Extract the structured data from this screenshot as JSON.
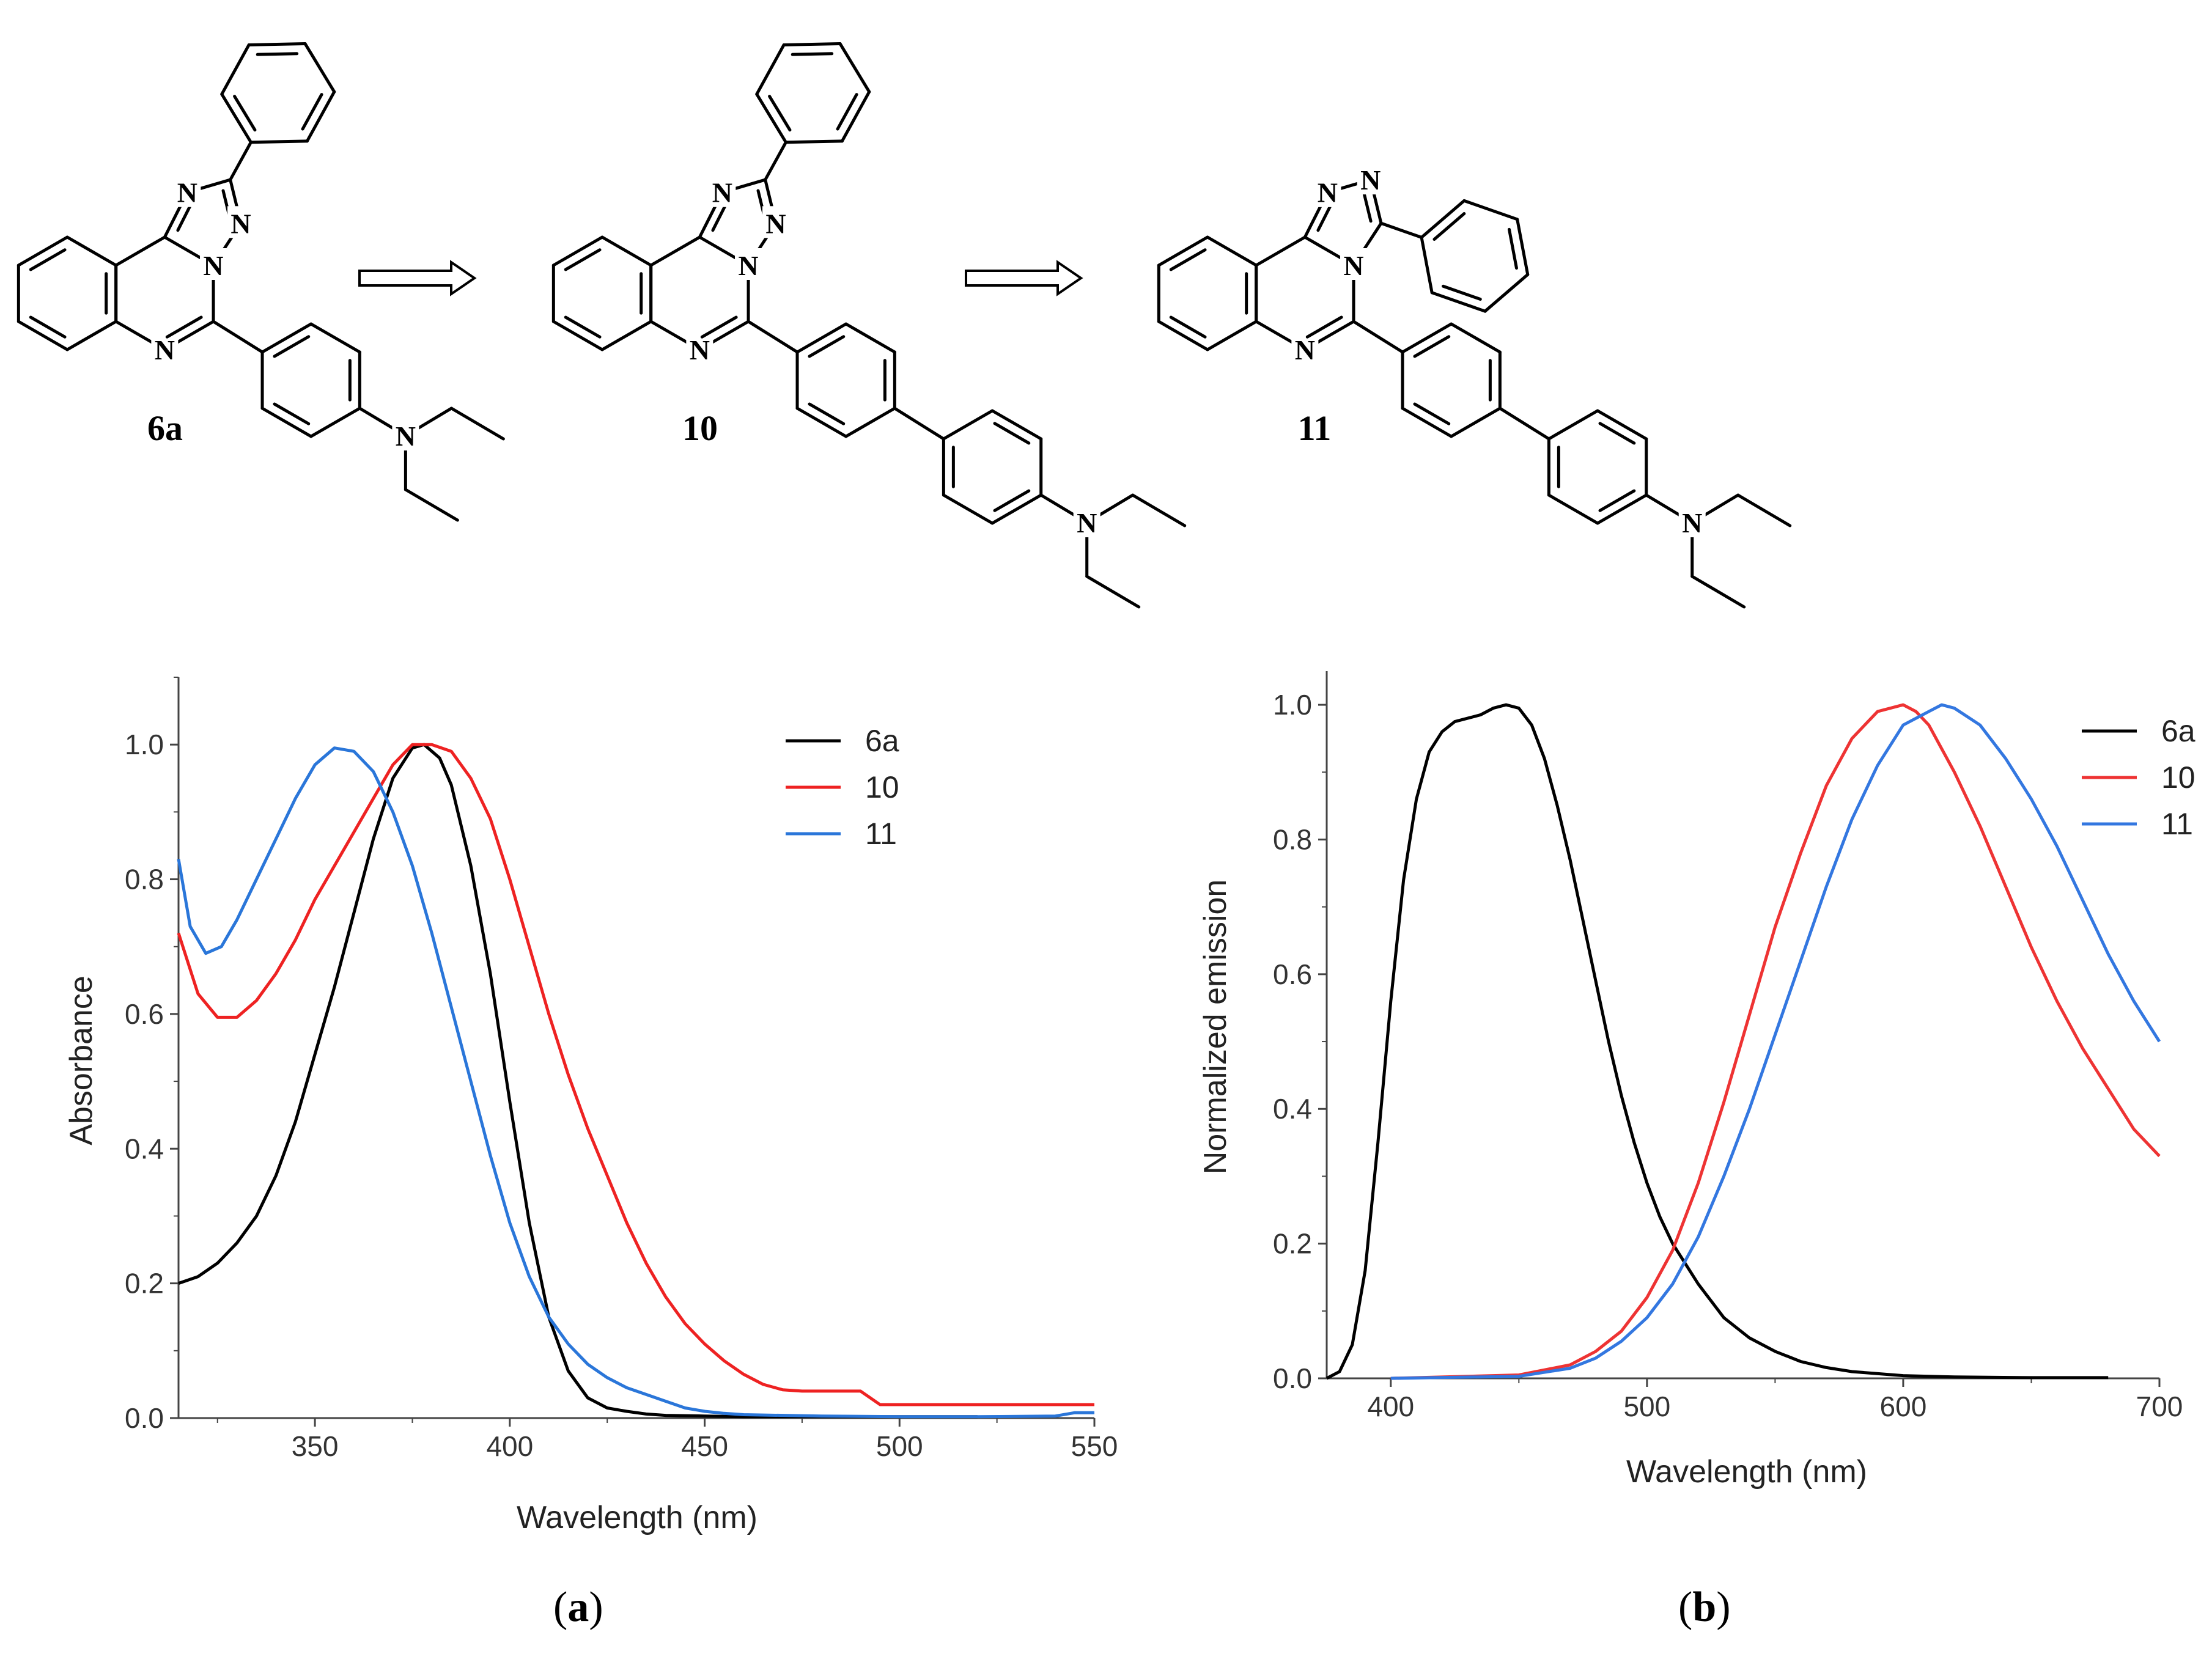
{
  "scheme": {
    "compounds": [
      {
        "label": "6a"
      },
      {
        "label": "10"
      },
      {
        "label": "11"
      }
    ],
    "atom_label": "N"
  },
  "panels": {
    "a": {
      "open": "(",
      "letter": "a",
      "close": ")"
    },
    "b": {
      "open": "(",
      "letter": "b",
      "close": ")"
    }
  },
  "chart_data": [
    {
      "type": "line",
      "xlabel": "Wavelength (nm)",
      "ylabel": "Absorbance",
      "xlim": [
        315,
        550
      ],
      "ylim": [
        0,
        1.1
      ],
      "xticks": [
        350,
        400,
        450,
        500,
        550
      ],
      "yticks": [
        0.0,
        0.2,
        0.4,
        0.6,
        0.8,
        1.0
      ],
      "grid": false,
      "legend": "top-right",
      "series": [
        {
          "name": "6a",
          "color": "#000000",
          "x": [
            315,
            320,
            325,
            330,
            335,
            340,
            345,
            350,
            355,
            360,
            365,
            370,
            375,
            378,
            382,
            385,
            390,
            395,
            400,
            405,
            410,
            415,
            420,
            425,
            430,
            435,
            440,
            450,
            460,
            480,
            500,
            520
          ],
          "y": [
            0.2,
            0.21,
            0.23,
            0.26,
            0.3,
            0.36,
            0.44,
            0.54,
            0.64,
            0.75,
            0.86,
            0.95,
            0.995,
            1.0,
            0.98,
            0.94,
            0.82,
            0.66,
            0.47,
            0.29,
            0.15,
            0.07,
            0.03,
            0.015,
            0.01,
            0.006,
            0.004,
            0.003,
            0.002,
            0.002,
            0.002,
            0.002
          ]
        },
        {
          "name": "10",
          "color": "#ee2222",
          "x": [
            315,
            320,
            325,
            330,
            335,
            340,
            345,
            350,
            355,
            360,
            365,
            370,
            375,
            380,
            385,
            390,
            395,
            400,
            405,
            410,
            415,
            420,
            425,
            430,
            435,
            440,
            445,
            450,
            455,
            460,
            465,
            470,
            475,
            480,
            490,
            495,
            500,
            510,
            520,
            530,
            540,
            550
          ],
          "y": [
            0.72,
            0.63,
            0.595,
            0.595,
            0.62,
            0.66,
            0.71,
            0.77,
            0.82,
            0.87,
            0.92,
            0.97,
            1.0,
            1.0,
            0.99,
            0.95,
            0.89,
            0.8,
            0.7,
            0.6,
            0.51,
            0.43,
            0.36,
            0.29,
            0.23,
            0.18,
            0.14,
            0.11,
            0.085,
            0.065,
            0.05,
            0.042,
            0.04,
            0.04,
            0.04,
            0.02,
            0.02,
            0.02,
            0.02,
            0.02,
            0.02,
            0.02
          ]
        },
        {
          "name": "11",
          "color": "#2a76d9",
          "x": [
            315,
            318,
            322,
            326,
            330,
            335,
            340,
            345,
            350,
            355,
            360,
            365,
            370,
            375,
            380,
            385,
            390,
            395,
            400,
            405,
            410,
            415,
            420,
            425,
            430,
            435,
            440,
            445,
            450,
            455,
            460,
            480,
            500,
            520,
            540,
            545,
            550
          ],
          "y": [
            0.83,
            0.73,
            0.69,
            0.7,
            0.74,
            0.8,
            0.86,
            0.92,
            0.97,
            0.995,
            0.99,
            0.96,
            0.9,
            0.82,
            0.72,
            0.61,
            0.5,
            0.39,
            0.29,
            0.21,
            0.15,
            0.11,
            0.08,
            0.06,
            0.045,
            0.035,
            0.025,
            0.015,
            0.01,
            0.007,
            0.005,
            0.003,
            0.002,
            0.002,
            0.003,
            0.008,
            0.008
          ]
        }
      ]
    },
    {
      "type": "line",
      "xlabel": "Wavelength (nm)",
      "ylabel": "Normalized emission",
      "xlim": [
        375,
        700
      ],
      "ylim": [
        0,
        1.05
      ],
      "xticks": [
        400,
        500,
        600,
        700
      ],
      "yticks": [
        0.0,
        0.2,
        0.4,
        0.6,
        0.8,
        1.0
      ],
      "grid": false,
      "legend": "top-right",
      "series": [
        {
          "name": "6a",
          "color": "#000000",
          "x": [
            375,
            380,
            385,
            390,
            395,
            400,
            405,
            410,
            415,
            420,
            425,
            430,
            435,
            440,
            445,
            450,
            455,
            460,
            465,
            470,
            475,
            480,
            485,
            490,
            495,
            500,
            505,
            510,
            520,
            530,
            540,
            550,
            560,
            570,
            580,
            600,
            620,
            650,
            680
          ],
          "y": [
            0.0,
            0.01,
            0.05,
            0.16,
            0.35,
            0.56,
            0.74,
            0.86,
            0.93,
            0.96,
            0.975,
            0.98,
            0.985,
            0.995,
            1.0,
            0.995,
            0.97,
            0.92,
            0.85,
            0.77,
            0.68,
            0.59,
            0.5,
            0.42,
            0.35,
            0.29,
            0.24,
            0.2,
            0.14,
            0.09,
            0.06,
            0.04,
            0.025,
            0.016,
            0.01,
            0.004,
            0.002,
            0.001,
            0.001
          ]
        },
        {
          "name": "10",
          "color": "#ee3333",
          "x": [
            400,
            450,
            470,
            480,
            490,
            500,
            510,
            520,
            530,
            540,
            550,
            560,
            570,
            580,
            590,
            600,
            605,
            610,
            620,
            630,
            640,
            650,
            660,
            670,
            680,
            690,
            700
          ],
          "y": [
            0.0,
            0.005,
            0.02,
            0.04,
            0.07,
            0.12,
            0.19,
            0.29,
            0.41,
            0.54,
            0.67,
            0.78,
            0.88,
            0.95,
            0.99,
            1.0,
            0.99,
            0.97,
            0.9,
            0.82,
            0.73,
            0.64,
            0.56,
            0.49,
            0.43,
            0.37,
            0.33
          ]
        },
        {
          "name": "11",
          "color": "#3377e0",
          "x": [
            400,
            450,
            470,
            480,
            490,
            500,
            510,
            520,
            530,
            540,
            550,
            560,
            570,
            580,
            590,
            600,
            610,
            615,
            620,
            630,
            640,
            650,
            660,
            670,
            680,
            690,
            700
          ],
          "y": [
            0.0,
            0.003,
            0.015,
            0.03,
            0.055,
            0.09,
            0.14,
            0.21,
            0.3,
            0.4,
            0.51,
            0.62,
            0.73,
            0.83,
            0.91,
            0.97,
            0.99,
            1.0,
            0.995,
            0.97,
            0.92,
            0.86,
            0.79,
            0.71,
            0.63,
            0.56,
            0.5
          ]
        }
      ]
    }
  ]
}
